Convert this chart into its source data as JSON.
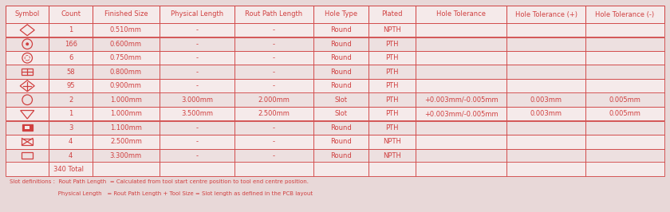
{
  "bg_color": "#f0e8e8",
  "border_color": "#d04040",
  "text_color": "#d04040",
  "cell_bg_light": "#f5eaea",
  "cell_bg_dark": "#ede0e0",
  "fig_bg": "#e8d8d8",
  "columns": [
    "Symbol",
    "Count",
    "Finished Size",
    "Physical Length",
    "Rout Path Length",
    "Hole Type",
    "Plated",
    "Hole Tolerance",
    "Hole Tolerance (+)",
    "Hole Tolerance (-)"
  ],
  "col_widths_rel": [
    5.5,
    5.5,
    8.5,
    9.5,
    10.0,
    7.0,
    6.0,
    11.5,
    10.0,
    10.0
  ],
  "rows": [
    [
      "diamond_open",
      "1",
      "0.510mm",
      "-",
      "-",
      "Round",
      "NPTH",
      "",
      "",
      ""
    ],
    [
      "circle_dot",
      "166",
      "0.600mm",
      "-",
      "-",
      "Round",
      "PTH",
      "",
      "",
      ""
    ],
    [
      "circle_open",
      "6",
      "0.750mm",
      "-",
      "-",
      "Round",
      "PTH",
      "",
      "",
      ""
    ],
    [
      "rect_cross",
      "58",
      "0.800mm",
      "-",
      "-",
      "Round",
      "PTH",
      "",
      "",
      ""
    ],
    [
      "diamond_cross",
      "95",
      "0.900mm",
      "-",
      "-",
      "Round",
      "PTH",
      "",
      "",
      ""
    ],
    [
      "circle_thin",
      "2",
      "1.000mm",
      "3.000mm",
      "2.000mm",
      "Slot",
      "PTH",
      "+0.003mm/-0.005mm",
      "0.003mm",
      "0.005mm"
    ],
    [
      "triangle_down",
      "1",
      "1.000mm",
      "3.500mm",
      "2.500mm",
      "Slot",
      "PTH",
      "+0.003mm/-0.005mm",
      "0.003mm",
      "0.005mm"
    ],
    [
      "rect_filled",
      "3",
      "1.100mm",
      "-",
      "-",
      "Round",
      "PTH",
      "",
      "",
      ""
    ],
    [
      "rect_x",
      "4",
      "2.500mm",
      "-",
      "-",
      "Round",
      "NPTH",
      "",
      "",
      ""
    ],
    [
      "rect_open",
      "4",
      "3.300mm",
      "-",
      "-",
      "Round",
      "NPTH",
      "",
      "",
      ""
    ]
  ],
  "total_text": "340 Total",
  "footer_line1": "Slot definitions :  Rout Path Length  = Calculated from tool start centre position to tool end centre position.",
  "footer_line2": "                           Physical Length   = Rout Path Length + Tool Size = Slot length as defined in the PCB layout",
  "header_fontsize": 6.0,
  "cell_fontsize": 6.0,
  "footer_fontsize": 5.0
}
